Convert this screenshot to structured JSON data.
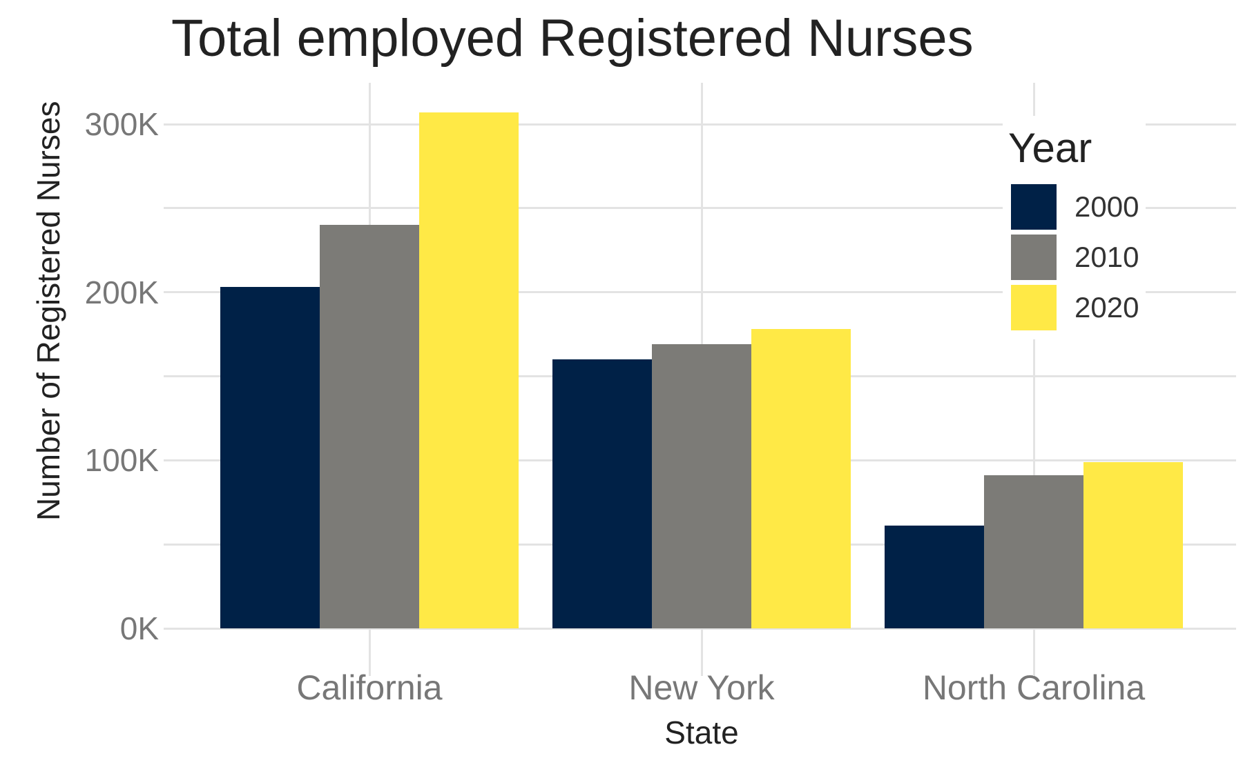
{
  "chart_data": {
    "type": "bar",
    "title": "Total employed Registered Nurses",
    "xlabel": "State",
    "ylabel": "Number of Registered Nurses",
    "categories": [
      "California",
      "New York",
      "North Carolina"
    ],
    "series": [
      {
        "name": "2000",
        "color": "#002147",
        "values": [
          203000,
          160000,
          61000
        ]
      },
      {
        "name": "2010",
        "color": "#7c7b77",
        "values": [
          240000,
          169000,
          91000
        ]
      },
      {
        "name": "2020",
        "color": "#ffe946",
        "values": [
          307000,
          178000,
          99000
        ]
      }
    ],
    "ylim": [
      0,
      320000
    ],
    "yticks": [
      0,
      100000,
      200000,
      300000
    ],
    "ytick_labels": [
      "0K",
      "100K",
      "200K",
      "300K"
    ],
    "grid": true,
    "legend": {
      "title": "Year",
      "position": "top-right-inside",
      "entries": [
        "2000",
        "2010",
        "2020"
      ]
    }
  },
  "title": "Total employed Registered Nurses",
  "axes": {
    "xlabel": "State",
    "ylabel": "Number of Registered Nurses",
    "yticks": [
      "0K",
      "100K",
      "200K",
      "300K"
    ],
    "xticks": [
      "California",
      "New York",
      "North Carolina"
    ]
  },
  "legend": {
    "title": "Year",
    "items": [
      {
        "label": "2000",
        "color": "#002147"
      },
      {
        "label": "2010",
        "color": "#7c7b77"
      },
      {
        "label": "2020",
        "color": "#ffe946"
      }
    ]
  }
}
